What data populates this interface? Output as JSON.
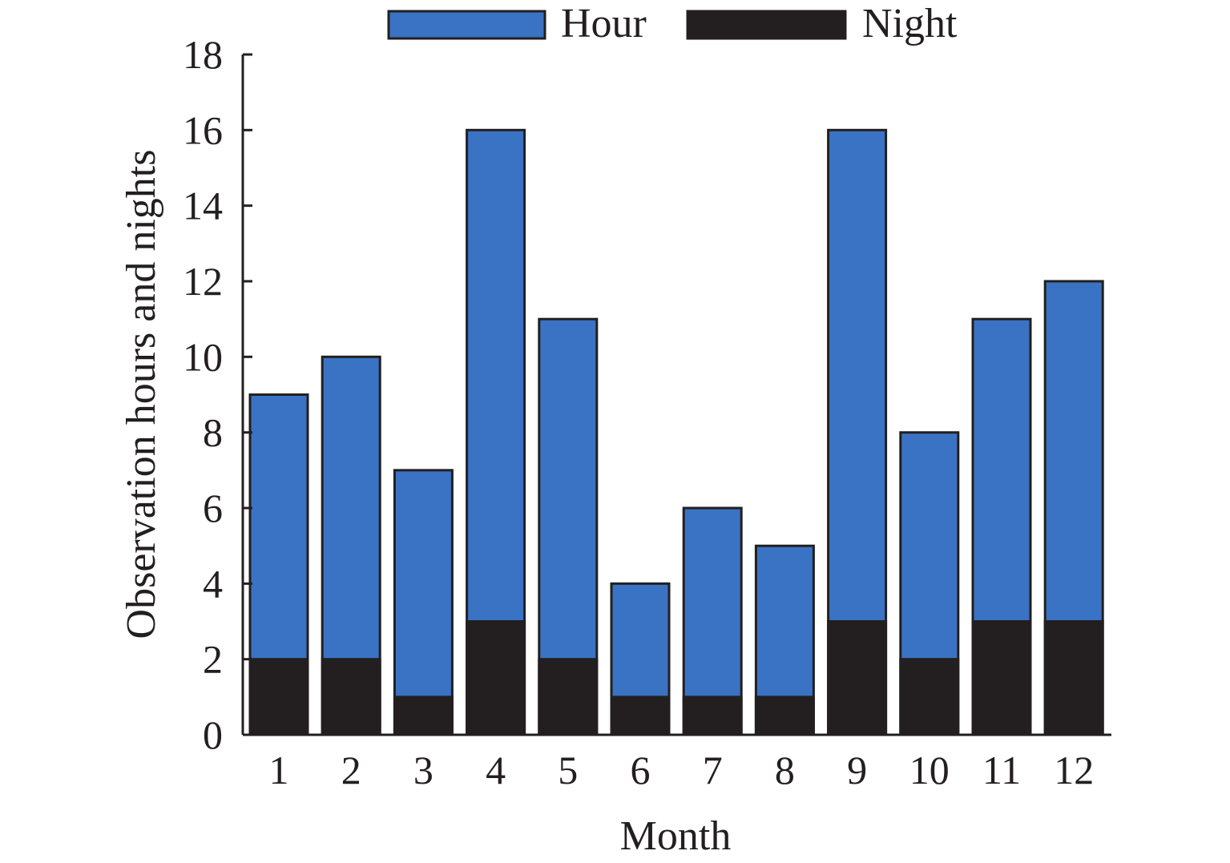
{
  "chart_data": {
    "type": "bar",
    "stacking": "overlaid",
    "categories": [
      "1",
      "2",
      "3",
      "4",
      "5",
      "6",
      "7",
      "8",
      "9",
      "10",
      "11",
      "12"
    ],
    "series": [
      {
        "name": "Hour",
        "color": "#3a73c4",
        "values": [
          9,
          10,
          7,
          16,
          11,
          4,
          6,
          5,
          16,
          8,
          11,
          12
        ]
      },
      {
        "name": "Night",
        "color": "#231f20",
        "values": [
          2,
          2,
          1,
          3,
          2,
          1,
          1,
          1,
          3,
          2,
          3,
          3
        ]
      }
    ],
    "title": "",
    "xlabel": "Month",
    "ylabel": "Observation hours and nights",
    "ylim": [
      0,
      18
    ],
    "yticks": [
      0,
      2,
      4,
      6,
      8,
      10,
      12,
      14,
      16,
      18
    ],
    "grid": false,
    "legend_position": "top-center"
  }
}
